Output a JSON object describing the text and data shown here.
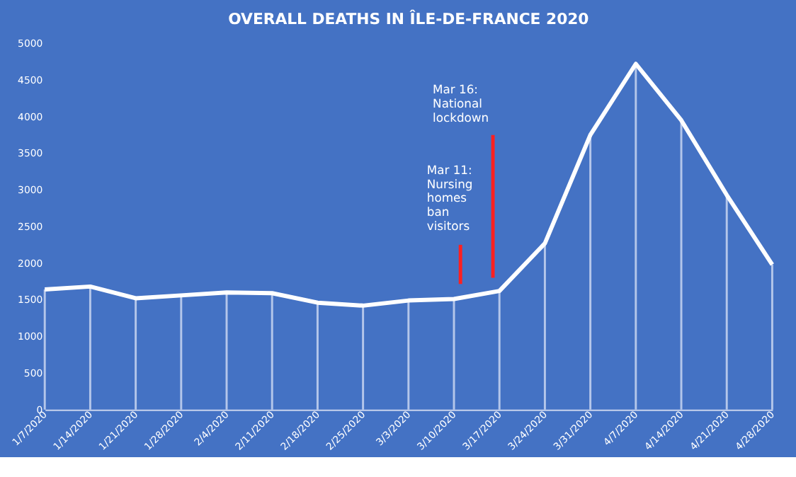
{
  "chart_data": {
    "type": "line",
    "title": "OVERALL DEATHS IN ÎLE-DE-FRANCE  2020",
    "x": [
      "2020-01-07",
      "2020-01-14",
      "2020-01-21",
      "2020-01-28",
      "2020-02-04",
      "2020-02-11",
      "2020-02-18",
      "2020-02-25",
      "2020-03-03",
      "2020-03-10",
      "2020-03-17",
      "2020-03-24",
      "2020-03-31",
      "2020-04-07",
      "2020-04-14",
      "2020-04-21",
      "2020-04-28"
    ],
    "series": [
      {
        "type": "bar",
        "color": "#b4c6ea",
        "values": [
          1640,
          1680,
          1520,
          1560,
          1600,
          1590,
          1460,
          1420,
          1490,
          1510,
          1620,
          2270,
          3750,
          4720,
          3950,
          2930,
          1980
        ]
      },
      {
        "color": "#ffffff",
        "values": [
          1640,
          1680,
          1520,
          1560,
          1600,
          1590,
          1460,
          1420,
          1490,
          1510,
          1620,
          2270,
          3750,
          4720,
          3950,
          2930,
          1980
        ]
      }
    ],
    "xlim": [
      "2020-01-07",
      "2020-04-28"
    ],
    "xticks": [
      {
        "value": "2020-01-07",
        "label": "1/7/2020"
      },
      {
        "value": "2020-01-14",
        "label": "1/14/2020"
      },
      {
        "value": "2020-01-21",
        "label": "1/21/2020"
      },
      {
        "value": "2020-01-28",
        "label": "1/28/2020"
      },
      {
        "value": "2020-02-04",
        "label": "2/4/2020"
      },
      {
        "value": "2020-02-11",
        "label": "2/11/2020"
      },
      {
        "value": "2020-02-18",
        "label": "2/18/2020"
      },
      {
        "value": "2020-02-25",
        "label": "2/25/2020"
      },
      {
        "value": "2020-03-03",
        "label": "3/3/2020"
      },
      {
        "value": "2020-03-10",
        "label": "3/10/2020"
      },
      {
        "value": "2020-03-17",
        "label": "3/17/2020"
      },
      {
        "value": "2020-03-24",
        "label": "3/24/2020"
      },
      {
        "value": "2020-03-31",
        "label": "3/31/2020"
      },
      {
        "value": "2020-04-07",
        "label": "4/7/2020"
      },
      {
        "value": "2020-04-14",
        "label": "4/14/2020"
      },
      {
        "value": "2020-04-21",
        "label": "4/21/2020"
      },
      {
        "value": "2020-04-28",
        "label": "4/28/2020"
      }
    ],
    "ylim": [
      0,
      5000
    ],
    "yticks": [
      0,
      500,
      1000,
      1500,
      2000,
      2500,
      3000,
      3500,
      4000,
      4500,
      5000
    ],
    "ref_lines": [
      {
        "axis": "x",
        "value": "2020-03-11",
        "label": "Mar 11:\nNursing\nhomes\nban\nvisitors",
        "color": "#ff2020"
      },
      {
        "axis": "x",
        "value": "2020-03-16",
        "label": "Mar 16:\nNational\nlockdown",
        "color": "#ff2020"
      }
    ],
    "grid": false,
    "marker": "none",
    "line_style": "solid"
  }
}
